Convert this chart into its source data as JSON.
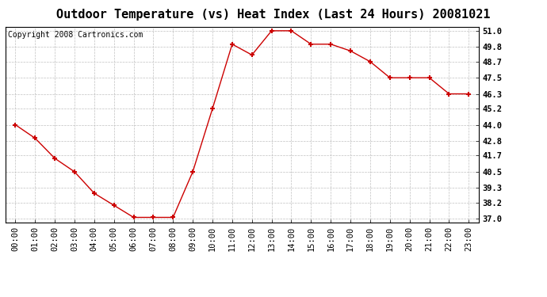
{
  "title": "Outdoor Temperature (vs) Heat Index (Last 24 Hours) 20081021",
  "copyright": "Copyright 2008 Cartronics.com",
  "x_labels": [
    "00:00",
    "01:00",
    "02:00",
    "03:00",
    "04:00",
    "05:00",
    "06:00",
    "07:00",
    "08:00",
    "09:00",
    "10:00",
    "11:00",
    "12:00",
    "13:00",
    "14:00",
    "15:00",
    "16:00",
    "17:00",
    "18:00",
    "19:00",
    "20:00",
    "21:00",
    "22:00",
    "23:00"
  ],
  "y_values": [
    44.0,
    43.0,
    41.5,
    40.5,
    38.9,
    38.0,
    37.1,
    37.1,
    37.1,
    40.5,
    45.2,
    50.0,
    49.2,
    51.0,
    51.0,
    50.0,
    50.0,
    49.5,
    48.7,
    47.5,
    47.5,
    47.5,
    46.3,
    46.3
  ],
  "y_ticks": [
    37.0,
    38.2,
    39.3,
    40.5,
    41.7,
    42.8,
    44.0,
    45.2,
    46.3,
    47.5,
    48.7,
    49.8,
    51.0
  ],
  "ylim": [
    36.7,
    51.3
  ],
  "line_color": "#cc0000",
  "marker": "+",
  "marker_color": "#cc0000",
  "bg_color": "#ffffff",
  "plot_bg_color": "#ffffff",
  "grid_color": "#c0c0c0",
  "title_fontsize": 11,
  "copyright_fontsize": 7,
  "tick_fontsize": 7.5,
  "ytick_fontsize": 7.5
}
